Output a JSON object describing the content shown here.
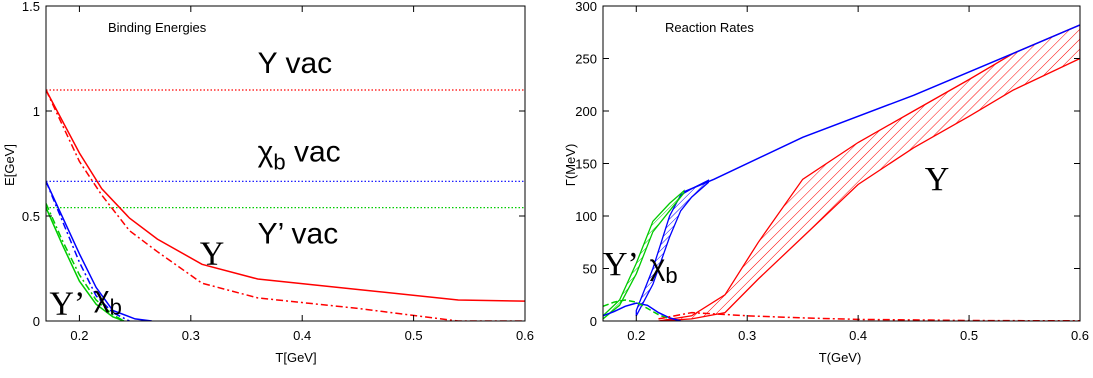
{
  "chart_data": [
    {
      "type": "line",
      "title": "Binding Energies",
      "xlabel": "T[GeV]",
      "ylabel": "E[GeV]",
      "xlim": [
        0.17,
        0.6
      ],
      "ylim": [
        0,
        1.5
      ],
      "x_ticks": [
        {
          "value": 0.2,
          "label": "0.2"
        },
        {
          "value": 0.3,
          "label": "0.3"
        },
        {
          "value": 0.4,
          "label": "0.4"
        },
        {
          "value": 0.5,
          "label": "0.5"
        },
        {
          "value": 0.6,
          "label": "0.6"
        }
      ],
      "y_ticks": [
        {
          "value": 0,
          "label": "0"
        },
        {
          "value": 0.5,
          "label": "0.5"
        },
        {
          "value": 1.0,
          "label": "1"
        },
        {
          "value": 1.5,
          "label": "1.5"
        }
      ],
      "grid": false,
      "series": [
        {
          "color": "#ff0000",
          "style": "dotted",
          "x": [
            0.17,
            0.6
          ],
          "y": [
            1.1,
            1.1
          ]
        },
        {
          "color": "#0000ff",
          "style": "dotted",
          "x": [
            0.17,
            0.6
          ],
          "y": [
            0.665,
            0.665
          ]
        },
        {
          "color": "#00cc00",
          "style": "dotted",
          "x": [
            0.17,
            0.6
          ],
          "y": [
            0.54,
            0.54
          ]
        },
        {
          "color": "#ff0000",
          "style": "solid",
          "x": [
            0.17,
            0.2,
            0.22,
            0.245,
            0.27,
            0.31,
            0.36,
            0.45,
            0.54,
            0.6
          ],
          "y": [
            1.1,
            0.8,
            0.63,
            0.49,
            0.39,
            0.27,
            0.2,
            0.15,
            0.1,
            0.095
          ]
        },
        {
          "color": "#ff0000",
          "style": "dashdot",
          "x": [
            0.17,
            0.2,
            0.22,
            0.245,
            0.27,
            0.31,
            0.36,
            0.45,
            0.54,
            0.6
          ],
          "y": [
            1.1,
            0.76,
            0.6,
            0.43,
            0.33,
            0.18,
            0.11,
            0.06,
            0.0,
            0.0
          ]
        },
        {
          "color": "#0000ff",
          "style": "solid",
          "x": [
            0.17,
            0.2,
            0.215,
            0.23,
            0.25,
            0.265
          ],
          "y": [
            0.665,
            0.32,
            0.16,
            0.05,
            0.01,
            0.0
          ]
        },
        {
          "color": "#0000ff",
          "style": "dashdot",
          "x": [
            0.17,
            0.2,
            0.215,
            0.23,
            0.245
          ],
          "y": [
            0.665,
            0.28,
            0.12,
            0.04,
            0.0
          ]
        },
        {
          "color": "#00cc00",
          "style": "solid",
          "x": [
            0.17,
            0.185,
            0.2,
            0.215,
            0.23,
            0.24
          ],
          "y": [
            0.54,
            0.36,
            0.19,
            0.08,
            0.02,
            0.0
          ]
        },
        {
          "color": "#00cc00",
          "style": "dashdot",
          "x": [
            0.17,
            0.185,
            0.2,
            0.215,
            0.23,
            0.24
          ],
          "y": [
            0.56,
            0.38,
            0.22,
            0.1,
            0.03,
            0.0
          ]
        }
      ],
      "annotations": [
        {
          "text": "Υ vac",
          "x": 0.36,
          "y": 1.18,
          "font": "sans"
        },
        {
          "main": "χ",
          "sub": "b",
          "tail": " vac",
          "x": 0.36,
          "y": 0.76
        },
        {
          "text": "Υ’ vac",
          "x": 0.36,
          "y": 0.37,
          "font": "sans"
        },
        {
          "text": "Υ",
          "x": 0.308,
          "y": 0.27,
          "font": "serif"
        },
        {
          "main": "χ",
          "sub": "b",
          "x": 0.213,
          "y": 0.07
        },
        {
          "text": "Υ’",
          "x": 0.173,
          "y": 0.03,
          "font": "serif"
        }
      ]
    },
    {
      "type": "area",
      "title": "Reaction Rates",
      "xlabel": "T(GeV)",
      "ylabel": "Γ(MeV)",
      "xlim": [
        0.17,
        0.6
      ],
      "ylim": [
        0,
        300
      ],
      "x_ticks": [
        {
          "value": 0.2,
          "label": "0.2"
        },
        {
          "value": 0.3,
          "label": "0.3"
        },
        {
          "value": 0.4,
          "label": "0.4"
        },
        {
          "value": 0.5,
          "label": "0.5"
        },
        {
          "value": 0.6,
          "label": "0.6"
        }
      ],
      "y_ticks": [
        {
          "value": 0,
          "label": "0"
        },
        {
          "value": 50,
          "label": "50"
        },
        {
          "value": 100,
          "label": "100"
        },
        {
          "value": 150,
          "label": "150"
        },
        {
          "value": 200,
          "label": "200"
        },
        {
          "value": 250,
          "label": "250"
        },
        {
          "value": 300,
          "label": "300"
        }
      ],
      "grid": false,
      "bands": [
        {
          "color": "#ff0000",
          "x": [
            0.22,
            0.25,
            0.28,
            0.31,
            0.35,
            0.4,
            0.45,
            0.5,
            0.54,
            0.6
          ],
          "lower": [
            0,
            2,
            8,
            40,
            80,
            130,
            165,
            195,
            220,
            250
          ],
          "upper": [
            0,
            5,
            25,
            75,
            135,
            170,
            200,
            230,
            255,
            282
          ]
        },
        {
          "color": "#0000ff",
          "x": [
            0.2,
            0.215,
            0.23,
            0.24,
            0.25,
            0.265
          ],
          "lower": [
            5,
            35,
            80,
            105,
            118,
            132
          ],
          "upper": [
            10,
            50,
            100,
            120,
            126,
            134
          ]
        },
        {
          "color": "#00cc00",
          "x": [
            0.17,
            0.185,
            0.2,
            0.215,
            0.23,
            0.243
          ],
          "lower": [
            2,
            15,
            45,
            85,
            105,
            122
          ],
          "upper": [
            5,
            20,
            55,
            95,
            112,
            124
          ]
        }
      ],
      "series": [
        {
          "color": "#0000ff",
          "style": "solid",
          "x": [
            0.243,
            0.27,
            0.35,
            0.45,
            0.54,
            0.6
          ],
          "y": [
            123,
            135,
            175,
            215,
            255,
            282
          ]
        },
        {
          "color": "#0000ff",
          "style": "solid",
          "x": [
            0.17,
            0.18,
            0.19,
            0.2,
            0.21,
            0.22,
            0.23,
            0.24
          ],
          "y": [
            5,
            9,
            14,
            17,
            15,
            8,
            3,
            0
          ]
        },
        {
          "color": "#00cc00",
          "style": "dashed",
          "x": [
            0.17,
            0.18,
            0.19,
            0.2,
            0.21,
            0.22,
            0.23
          ],
          "y": [
            14,
            18,
            20,
            18,
            12,
            6,
            2
          ]
        },
        {
          "color": "#ff0000",
          "style": "dashdot",
          "x": [
            0.22,
            0.25,
            0.3,
            0.35,
            0.4,
            0.45,
            0.5,
            0.55,
            0.6
          ],
          "y": [
            2,
            8,
            5,
            3,
            1.5,
            1,
            0.5,
            0.3,
            0.2
          ]
        }
      ],
      "annotations": [
        {
          "text": "Υ",
          "x": 0.46,
          "y": 125,
          "font": "serif"
        },
        {
          "main": "χ",
          "sub": "b",
          "x": 0.212,
          "y": 44
        },
        {
          "text": "Υ’",
          "x": 0.17,
          "y": 44,
          "font": "serif"
        }
      ]
    }
  ]
}
